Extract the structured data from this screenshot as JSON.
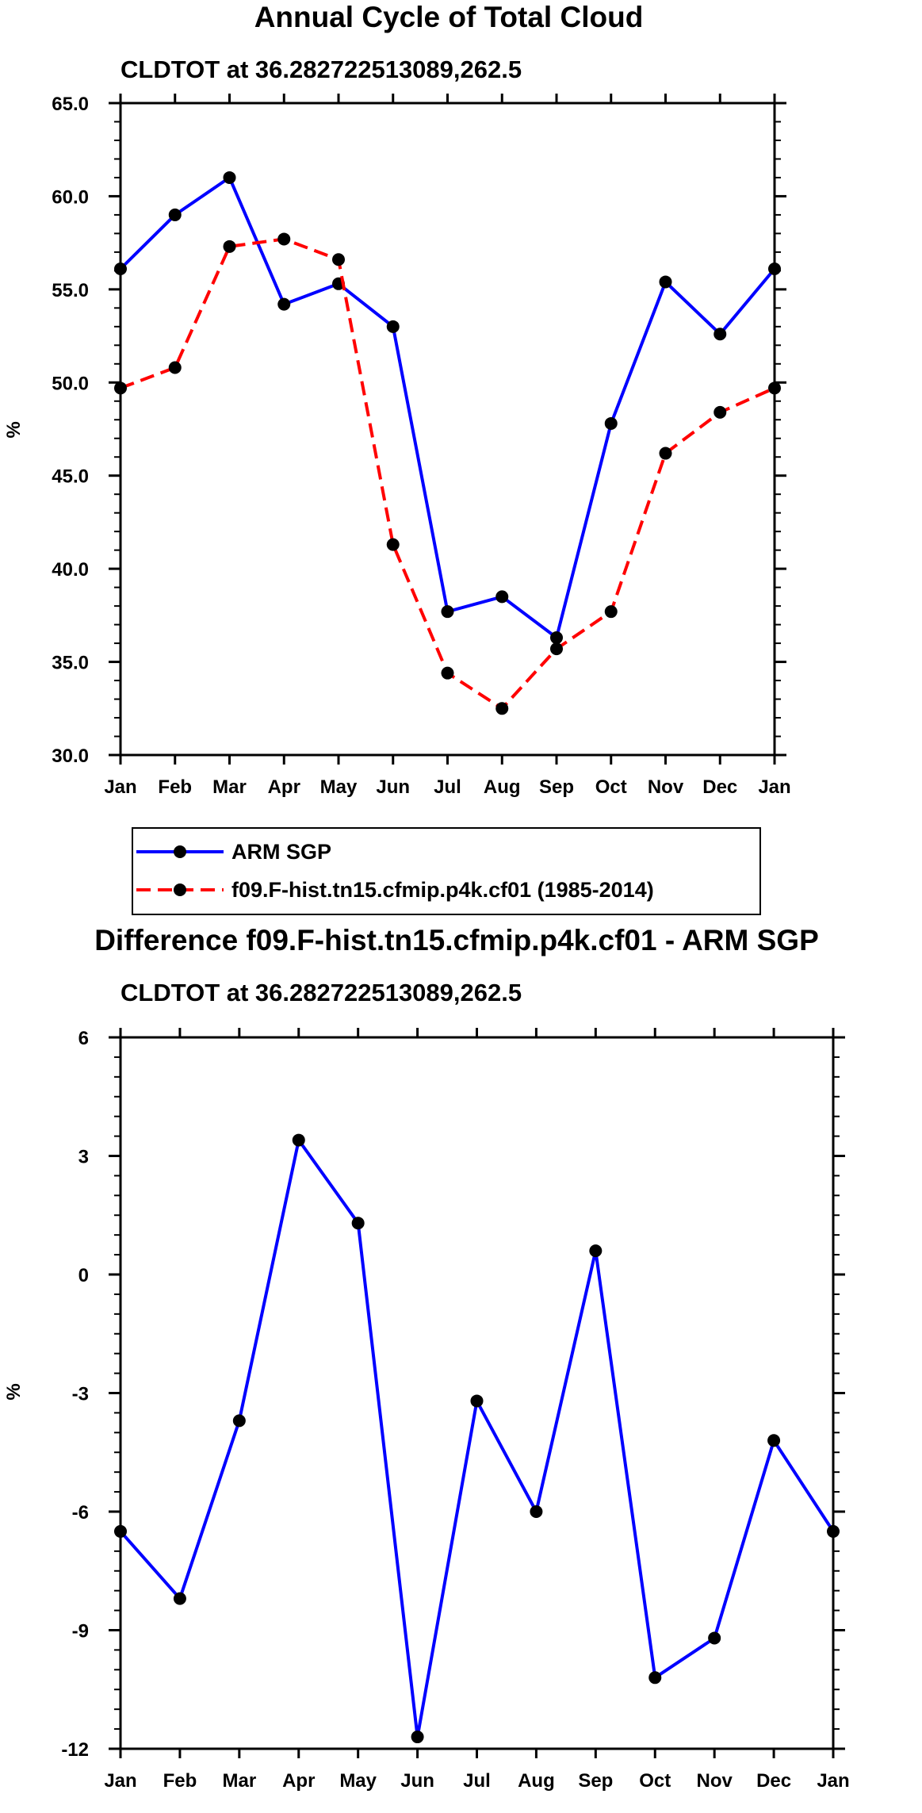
{
  "chart_data": [
    {
      "type": "line",
      "title": "Annual Cycle of Total Cloud",
      "subtitle": "CLDTOT at 36.282722513089,262.5",
      "xlabel": "",
      "ylabel": "%",
      "categories": [
        "Jan",
        "Feb",
        "Mar",
        "Apr",
        "May",
        "Jun",
        "Jul",
        "Aug",
        "Sep",
        "Oct",
        "Nov",
        "Dec",
        "Jan"
      ],
      "ylim": [
        30.0,
        65.0
      ],
      "yticks": [
        "30.0",
        "35.0",
        "40.0",
        "45.0",
        "50.0",
        "55.0",
        "60.0",
        "65.0"
      ],
      "ytick_values": [
        30,
        35,
        40,
        45,
        50,
        55,
        60,
        65
      ],
      "series": [
        {
          "name": "ARM SGP",
          "color": "#0000ff",
          "dash": "solid",
          "values": [
            56.1,
            59.0,
            61.0,
            54.2,
            55.3,
            53.0,
            37.7,
            38.5,
            36.3,
            47.8,
            55.4,
            52.6,
            56.1
          ]
        },
        {
          "name": "f09.F-hist.tn15.cfmip.p4k.cf01 (1985-2014)",
          "color": "#ff0000",
          "dash": "dashed",
          "values": [
            49.7,
            50.8,
            57.3,
            57.7,
            56.6,
            41.3,
            34.4,
            32.5,
            35.7,
            37.7,
            46.2,
            48.4,
            49.7
          ]
        }
      ],
      "legend": "below"
    },
    {
      "type": "line",
      "title": "Difference f09.F-hist.tn15.cfmip.p4k.cf01 - ARM SGP",
      "subtitle": "CLDTOT at 36.282722513089,262.5",
      "xlabel": "",
      "ylabel": "%",
      "categories": [
        "Jan",
        "Feb",
        "Mar",
        "Apr",
        "May",
        "Jun",
        "Jul",
        "Aug",
        "Sep",
        "Oct",
        "Nov",
        "Dec",
        "Jan"
      ],
      "ylim": [
        -12,
        6
      ],
      "yticks": [
        "-12",
        "-9",
        "-6",
        "-3",
        "0",
        "3",
        "6"
      ],
      "ytick_values": [
        -12,
        -9,
        -6,
        -3,
        0,
        3,
        6
      ],
      "series": [
        {
          "name": "Difference",
          "color": "#0000ff",
          "dash": "solid",
          "values": [
            -6.5,
            -8.2,
            -3.7,
            3.4,
            1.3,
            -11.7,
            -3.2,
            -6.0,
            0.6,
            -10.2,
            -9.2,
            -4.2,
            -6.5
          ]
        }
      ]
    }
  ]
}
